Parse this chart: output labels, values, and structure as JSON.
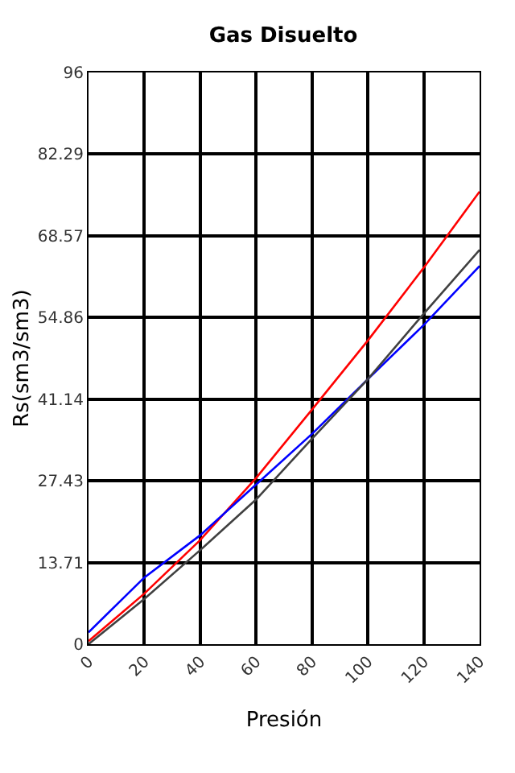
{
  "chart_data": {
    "type": "line",
    "title": "Gas Disuelto",
    "xlabel": "Presión",
    "ylabel": "Rs(sm3/sm3)",
    "x": [
      0,
      20,
      40,
      60,
      80,
      100,
      120,
      140
    ],
    "series": [
      {
        "color": "#ff0000",
        "values": [
          0.5,
          8.5,
          17.5,
          27.9,
          39.4,
          51,
          63.2,
          76
        ]
      },
      {
        "color": "#0000ff",
        "values": [
          2,
          11.2,
          18.3,
          26.8,
          35.3,
          44.5,
          53.6,
          63.5
        ]
      },
      {
        "color": "#404040",
        "values": [
          0,
          7.6,
          15.8,
          24.3,
          34.5,
          44.5,
          55.5,
          66.2
        ]
      }
    ],
    "xlim": [
      0,
      140
    ],
    "xticks": [
      0,
      20,
      40,
      60,
      80,
      100,
      120,
      140
    ],
    "ylim": [
      0,
      96
    ],
    "yticks": [
      0,
      13.71,
      27.43,
      41.14,
      54.86,
      68.57,
      82.29,
      96
    ],
    "grid": true
  }
}
